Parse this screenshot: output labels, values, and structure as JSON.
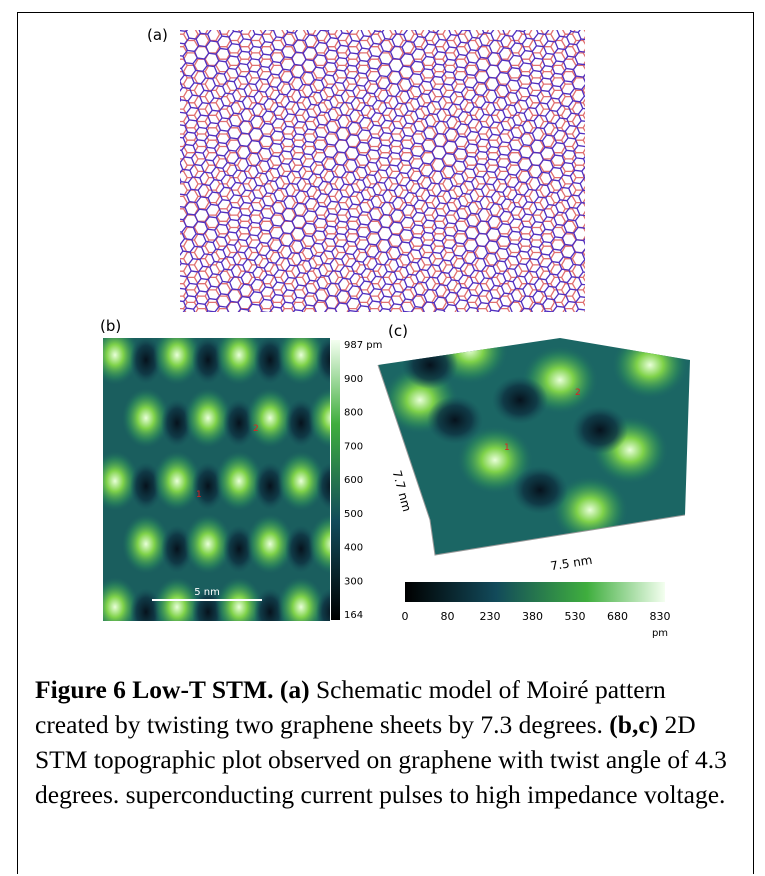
{
  "figure": {
    "panel_a": {
      "label": "(a)"
    },
    "panel_b": {
      "label": "(b)",
      "scale_bar": "5 nm",
      "points": [
        "1",
        "2"
      ],
      "colorbar_ticks": [
        "987 pm",
        "900",
        "800",
        "700",
        "600",
        "500",
        "400",
        "300",
        "164"
      ]
    },
    "panel_c": {
      "label": "(c)",
      "points": [
        "1",
        "2"
      ],
      "axis_y": "7.7 nm",
      "axis_x": "7.5 nm",
      "colorbar_ticks": [
        "0",
        "80",
        "230",
        "380",
        "530",
        "680",
        "830"
      ],
      "colorbar_unit": "pm"
    }
  },
  "caption": {
    "title": "Figure 6 Low-T STM.",
    "parts": [
      {
        "label": "(a)",
        "text": "Schematic model of Moiré pattern created by twisting two graphene sheets by 7.3 degrees."
      },
      {
        "label": "(b,c)",
        "text": "2D STM topographic plot observed on graphene with twist angle of 4.3 degrees.  superconducting current pulses to high impedance voltage."
      }
    ]
  }
}
